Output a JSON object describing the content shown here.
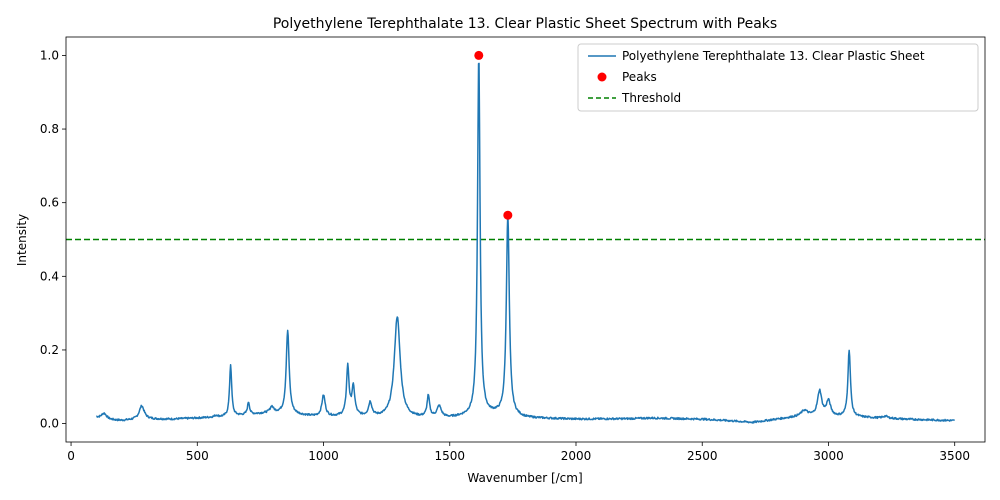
{
  "chart_data": {
    "type": "line",
    "title": "Polyethylene Terephthalate 13. Clear Plastic Sheet Spectrum with Peaks",
    "xlabel": "Wavenumber [/cm]",
    "ylabel": "Intensity",
    "xlim": [
      -20,
      3620
    ],
    "ylim": [
      -0.05,
      1.05
    ],
    "xticks": [
      0,
      500,
      1000,
      1500,
      2000,
      2500,
      3000,
      3500
    ],
    "yticks": [
      0.0,
      0.2,
      0.4,
      0.6,
      0.8,
      1.0
    ],
    "xtick_labels": [
      "0",
      "500",
      "1000",
      "1500",
      "2000",
      "2500",
      "3000",
      "3500"
    ],
    "ytick_labels": [
      "0.0",
      "0.2",
      "0.4",
      "0.6",
      "0.8",
      "1.0"
    ],
    "grid": false,
    "legend_position": "top-right",
    "colors": {
      "spectrum": "#1f77b4",
      "peaks": "#ff0000",
      "threshold": "#008000"
    },
    "series": [
      {
        "name": "Polyethylene Terephthalate 13. Clear Plastic Sheet",
        "style": "solid",
        "baseline": [
          [
            100,
            0.018
          ],
          [
            150,
            0.01
          ],
          [
            200,
            0.008
          ],
          [
            300,
            0.012
          ],
          [
            400,
            0.012
          ],
          [
            500,
            0.015
          ],
          [
            600,
            0.018
          ],
          [
            800,
            0.03
          ],
          [
            950,
            0.02
          ],
          [
            1000,
            0.018
          ],
          [
            1100,
            0.02
          ],
          [
            1250,
            0.015
          ],
          [
            1500,
            0.015
          ],
          [
            1580,
            0.02
          ],
          [
            1680,
            0.025
          ],
          [
            1800,
            0.015
          ],
          [
            2000,
            0.012
          ],
          [
            2200,
            0.013
          ],
          [
            2300,
            0.015
          ],
          [
            2500,
            0.012
          ],
          [
            2600,
            0.008
          ],
          [
            2700,
            0.003
          ],
          [
            2800,
            0.012
          ],
          [
            2900,
            0.02
          ],
          [
            3100,
            0.018
          ],
          [
            3200,
            0.015
          ],
          [
            3300,
            0.012
          ],
          [
            3500,
            0.008
          ]
        ],
        "peaks": [
          [
            130,
            0.028,
            12
          ],
          [
            280,
            0.048,
            12
          ],
          [
            575,
            0.022,
            8
          ],
          [
            632,
            0.16,
            5
          ],
          [
            703,
            0.058,
            5
          ],
          [
            795,
            0.045,
            8
          ],
          [
            858,
            0.252,
            7
          ],
          [
            1000,
            0.076,
            8
          ],
          [
            1096,
            0.153,
            6
          ],
          [
            1118,
            0.096,
            7
          ],
          [
            1185,
            0.055,
            8
          ],
          [
            1292,
            0.29,
            14
          ],
          [
            1415,
            0.072,
            6
          ],
          [
            1458,
            0.045,
            10
          ],
          [
            1615,
            1.0,
            6
          ],
          [
            1730,
            0.566,
            7
          ],
          [
            2905,
            0.035,
            15
          ],
          [
            2965,
            0.088,
            10
          ],
          [
            3000,
            0.06,
            10
          ],
          [
            3082,
            0.2,
            6
          ],
          [
            3225,
            0.02,
            12
          ]
        ]
      },
      {
        "name": "Peaks",
        "points": [
          [
            1615,
            1.0
          ],
          [
            1730,
            0.566
          ]
        ]
      },
      {
        "name": "Threshold",
        "style": "dashed",
        "y": 0.5
      }
    ]
  }
}
